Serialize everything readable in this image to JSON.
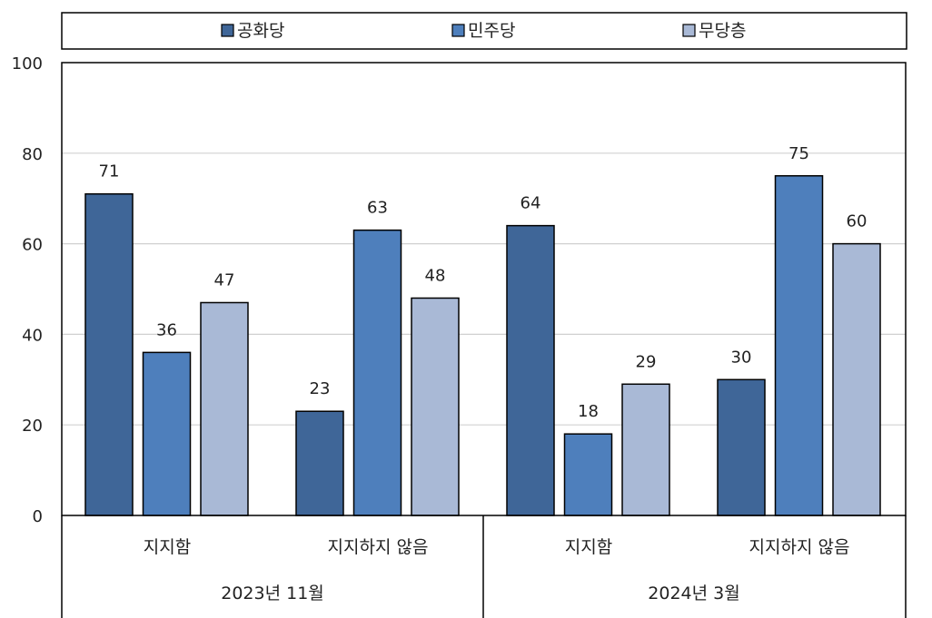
{
  "chart_data": {
    "type": "bar",
    "groups": [
      {
        "label": "2023년 11월",
        "categories": [
          "지지함",
          "지지하지 않음"
        ]
      },
      {
        "label": "2024년 3월",
        "categories": [
          "지지함",
          "지지하지 않음"
        ]
      }
    ],
    "series": [
      {
        "name": "공화당",
        "color": "#3f6698",
        "values": [
          71,
          23,
          64,
          30
        ]
      },
      {
        "name": "민주당",
        "color": "#4e7fbc",
        "values": [
          36,
          63,
          18,
          75
        ]
      },
      {
        "name": "무당층",
        "color": "#a9b9d6",
        "values": [
          47,
          48,
          29,
          60
        ]
      }
    ],
    "ylim": [
      0,
      100
    ],
    "yticks": [
      0,
      20,
      40,
      60,
      80,
      100
    ],
    "grid": true,
    "legend_position": "top"
  }
}
